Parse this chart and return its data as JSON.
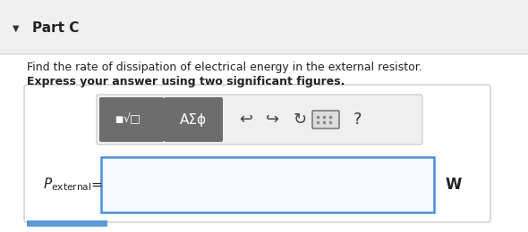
{
  "bg_color": "#f0f0f0",
  "white_bg": "#ffffff",
  "part_label": "Part C",
  "triangle": "▼",
  "line1": "Find the rate of dissipation of electrical energy in the external resistor.",
  "line2": "Express your answer using two significant figures.",
  "equals": "=",
  "unit": "W",
  "input_border": "#4a90d9",
  "outer_border": "#cccccc",
  "bottom_bar_color": "#5b9bd5",
  "btn_color": "#6d6d6d",
  "toolbar_bg": "#efefef",
  "icon_color": "#444444"
}
